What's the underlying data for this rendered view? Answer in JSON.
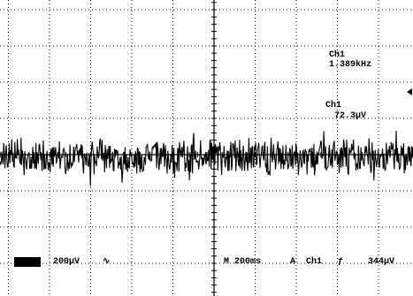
{
  "display": {
    "measurements": {
      "frequency": {
        "source": "Ch1",
        "value": "1.389kHz"
      },
      "amplitude": {
        "source": "Ch1",
        "value": "72.3µV"
      }
    },
    "status_bar": {
      "channel_scale": "200µV",
      "coupling": "∿",
      "timebase": "M 200ms",
      "trigger": {
        "mode": "A",
        "source": "Ch1",
        "slope": "ƒ",
        "level": "344µV"
      }
    }
  }
}
